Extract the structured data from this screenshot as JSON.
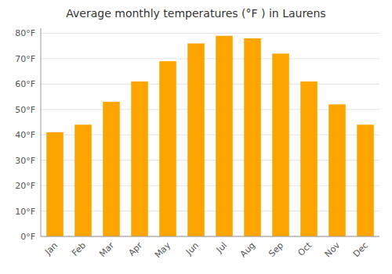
{
  "chart_data": {
    "type": "bar",
    "title": "Average monthly temperatures (°F ) in Laurens",
    "categories": [
      "Jan",
      "Feb",
      "Mar",
      "Apr",
      "May",
      "Jun",
      "Jul",
      "Aug",
      "Sep",
      "Oct",
      "Nov",
      "Dec"
    ],
    "values": [
      41,
      44,
      53,
      61,
      69,
      76,
      79,
      78,
      72,
      61,
      52,
      44
    ],
    "color": "#FFA500",
    "ylim": [
      0,
      82
    ],
    "yticks": [
      {
        "value": 0,
        "label": "0°F"
      },
      {
        "value": 10,
        "label": "10°F"
      },
      {
        "value": 20,
        "label": "20°F"
      },
      {
        "value": 30,
        "label": "30°F"
      },
      {
        "value": 40,
        "label": "40°F"
      },
      {
        "value": 50,
        "label": "50°F"
      },
      {
        "value": 60,
        "label": "60°F"
      },
      {
        "value": 70,
        "label": "70°F"
      },
      {
        "value": 80,
        "label": "80°F"
      }
    ],
    "grid": true
  }
}
